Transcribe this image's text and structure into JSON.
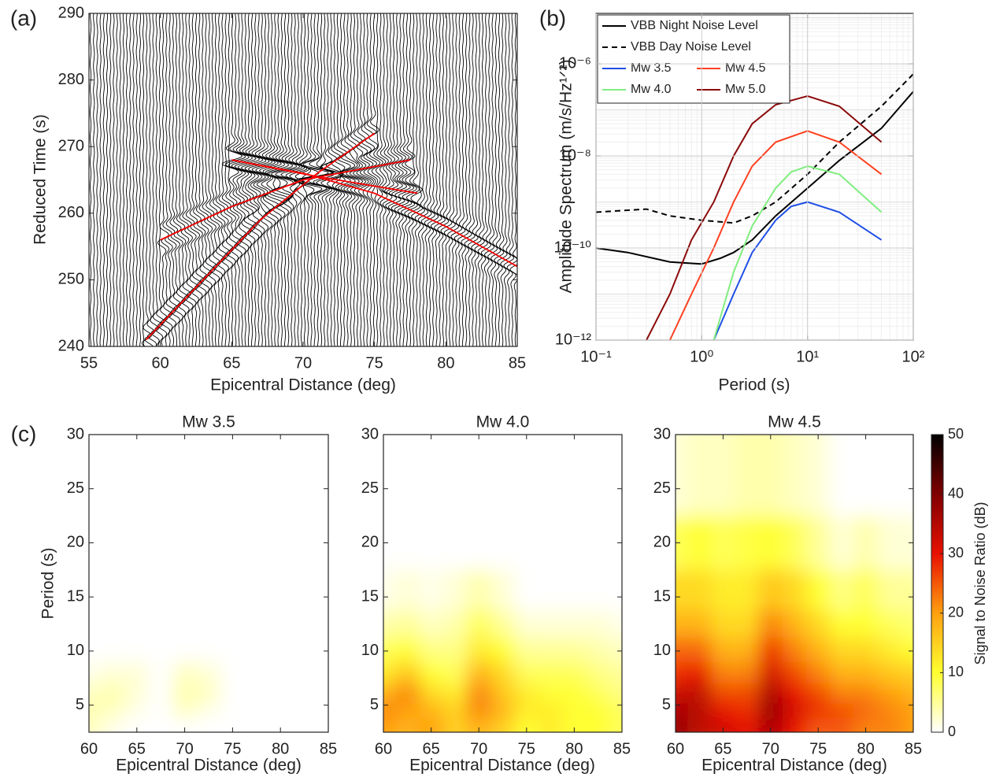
{
  "chart_data": [
    {
      "type": "record_section",
      "panel_label": "(a)",
      "xlabel": "Epicentral Distance (deg)",
      "ylabel": "Reduced Time (s)",
      "xlim": [
        55,
        85
      ],
      "ylim": [
        240,
        290
      ],
      "xticks": [
        55,
        60,
        65,
        70,
        75,
        80,
        85
      ],
      "yticks": [
        240,
        250,
        260,
        270,
        280,
        290
      ],
      "color": "#ff0000",
      "series": [
        {
          "x": [
            59,
            63,
            67,
            71,
            75
          ],
          "values": [
            241,
            250,
            259,
            266,
            272
          ]
        },
        {
          "x": [
            60,
            65,
            70,
            77.5
          ],
          "values": [
            256,
            261,
            265,
            268
          ]
        },
        {
          "x": [
            65,
            70,
            75,
            80,
            85
          ],
          "values": [
            268,
            266,
            263,
            258,
            252
          ]
        },
        {
          "x": [
            65,
            71,
            78
          ],
          "values": [
            268,
            265.5,
            263
          ]
        }
      ]
    },
    {
      "type": "line",
      "panel_label": "(b)",
      "xlabel": "Period (s)",
      "ylabel": "Amplitude Spectrum (m/s/Hz¹ᐟ²)",
      "log_x": true,
      "log_y": true,
      "grid": true,
      "legend": "upper left",
      "xlim": [
        0.1,
        100
      ],
      "ylim": [
        1e-12,
        1.25e-05
      ],
      "xticks": [
        {
          "value": 0.1,
          "label": "10⁻¹"
        },
        {
          "value": 1,
          "label": "10⁰"
        },
        {
          "value": 10,
          "label": "10¹"
        },
        {
          "value": 100,
          "label": "10²"
        }
      ],
      "yticks": [
        {
          "value": 1e-12,
          "label": "10⁻¹²"
        },
        {
          "value": 1e-10,
          "label": "10⁻¹⁰"
        },
        {
          "value": 1e-08,
          "label": "10⁻⁸"
        },
        {
          "value": 1e-06,
          "label": "10⁻⁶"
        }
      ],
      "series": [
        {
          "name": "VBB Night Noise Level",
          "color": "#000000",
          "dash": false,
          "x": [
            0.1,
            0.2,
            0.5,
            1,
            1.5,
            2,
            3,
            5,
            10,
            20,
            50,
            100
          ],
          "values": [
            1e-10,
            8e-11,
            5e-11,
            4.5e-11,
            6e-11,
            8e-11,
            1.5e-10,
            5e-10,
            2e-09,
            8e-09,
            4e-08,
            2.5e-07
          ]
        },
        {
          "name": "VBB Day Noise Level",
          "color": "#000000",
          "dash": true,
          "x": [
            0.1,
            0.3,
            0.5,
            1,
            2,
            3,
            5,
            10,
            20,
            50,
            100
          ],
          "values": [
            6e-10,
            7e-10,
            5e-10,
            4e-10,
            3.5e-10,
            5e-10,
            1e-09,
            4e-09,
            2e-08,
            1.2e-07,
            6e-07
          ]
        },
        {
          "name": "Mw 3.5",
          "color": "#1f4fe6",
          "dash": false,
          "x": [
            1.3,
            2,
            3,
            5,
            7,
            10,
            20,
            50
          ],
          "values": [
            1e-12,
            1e-11,
            8e-11,
            4e-10,
            8e-10,
            1e-09,
            6e-10,
            1.5e-10
          ]
        },
        {
          "name": "Mw 4.5",
          "color": "#ff4020",
          "dash": false,
          "x": [
            0.5,
            0.8,
            1.3,
            2,
            3,
            5,
            10,
            20,
            50
          ],
          "values": [
            1e-12,
            1e-11,
            1e-10,
            1e-09,
            6e-09,
            2e-08,
            3.5e-08,
            2e-08,
            4e-09
          ]
        },
        {
          "name": "Mw 4.0",
          "color": "#80ee80",
          "dash": false,
          "x": [
            1.3,
            2,
            3,
            5,
            7,
            10,
            20,
            50
          ],
          "values": [
            1e-12,
            3e-11,
            3e-10,
            2e-09,
            4.5e-09,
            6e-09,
            4e-09,
            6e-10
          ]
        },
        {
          "name": "Mw 5.0",
          "color": "#8b0a0a",
          "dash": false,
          "x": [
            0.3,
            0.5,
            0.8,
            1.3,
            2,
            3,
            5,
            10,
            20,
            50
          ],
          "values": [
            1e-12,
            1e-11,
            1.5e-10,
            1e-09,
            1e-08,
            5e-08,
            1.3e-07,
            2e-07,
            1.2e-07,
            2e-08
          ]
        }
      ]
    },
    {
      "type": "heatmap",
      "panel_label": "(c)",
      "title": "Mw 3.5",
      "xlabel": "Epicentral Distance (deg)",
      "ylabel": "Period (s)",
      "xlim": [
        60,
        85
      ],
      "ylim": [
        2.5,
        30
      ],
      "xticks": [
        60,
        65,
        70,
        75,
        80,
        85
      ],
      "yticks": [
        5,
        10,
        15,
        20,
        25,
        30
      ],
      "x": [
        60,
        62.5,
        65,
        67.5,
        70,
        72.5,
        75,
        77.5,
        80,
        82.5,
        85
      ],
      "y": [
        3,
        4.5,
        6,
        8,
        10,
        12.5,
        15,
        20,
        25
      ],
      "z": [
        [
          3,
          1,
          0,
          0,
          0,
          0,
          0,
          0,
          0,
          0,
          0
        ],
        [
          4,
          3,
          1,
          0,
          3,
          1,
          0,
          0,
          0,
          0,
          0
        ],
        [
          3,
          4,
          2,
          0,
          4,
          3,
          0,
          0,
          0,
          0,
          0
        ],
        [
          1,
          2,
          2,
          0,
          3,
          2,
          0,
          0,
          0,
          0,
          0
        ],
        [
          0,
          0,
          0,
          0,
          0,
          0,
          0,
          0,
          0,
          0,
          0
        ],
        [
          0,
          0,
          0,
          0,
          0,
          0,
          0,
          0,
          0,
          0,
          0
        ],
        [
          0,
          0,
          0,
          0,
          0,
          0,
          0,
          0,
          0,
          0,
          0
        ],
        [
          0,
          0,
          0,
          0,
          0,
          0,
          0,
          0,
          0,
          0,
          0
        ],
        [
          0,
          0,
          0,
          0,
          0,
          0,
          0,
          0,
          0,
          0,
          0
        ]
      ]
    },
    {
      "type": "heatmap",
      "title": "Mw 4.0",
      "xlabel": "Epicentral Distance (deg)",
      "xlim": [
        60,
        85
      ],
      "ylim": [
        2.5,
        30
      ],
      "xticks": [
        60,
        65,
        70,
        75,
        80,
        85
      ],
      "yticks": [
        5,
        10,
        15,
        20,
        25,
        30
      ],
      "x": [
        60,
        62.5,
        65,
        67.5,
        70,
        72.5,
        75,
        77.5,
        80,
        82.5,
        85
      ],
      "y": [
        3,
        4.5,
        6,
        8,
        10,
        12.5,
        15,
        20,
        25
      ],
      "z": [
        [
          20,
          18,
          20,
          15,
          18,
          15,
          10,
          12,
          10,
          10,
          8
        ],
        [
          22,
          20,
          18,
          15,
          22,
          18,
          12,
          12,
          10,
          10,
          8
        ],
        [
          18,
          22,
          14,
          12,
          22,
          16,
          12,
          10,
          10,
          8,
          6
        ],
        [
          12,
          16,
          10,
          8,
          18,
          14,
          8,
          8,
          8,
          6,
          5
        ],
        [
          8,
          10,
          6,
          6,
          12,
          10,
          5,
          5,
          5,
          4,
          3
        ],
        [
          4,
          5,
          3,
          4,
          8,
          5,
          2,
          2,
          2,
          2,
          1
        ],
        [
          1,
          2,
          1,
          2,
          4,
          2,
          0,
          0,
          0,
          0,
          0
        ],
        [
          0,
          0,
          0,
          0,
          0,
          0,
          0,
          0,
          0,
          0,
          0
        ],
        [
          0,
          0,
          0,
          0,
          0,
          0,
          0,
          0,
          0,
          0,
          0
        ]
      ]
    },
    {
      "type": "heatmap",
      "title": "Mw 4.5",
      "xlabel": "Epicentral Distance (deg)",
      "xlim": [
        60,
        85
      ],
      "ylim": [
        2.5,
        30
      ],
      "xticks": [
        60,
        65,
        70,
        75,
        80,
        85
      ],
      "yticks": [
        5,
        10,
        15,
        20,
        25,
        30
      ],
      "x": [
        60,
        62.5,
        65,
        67.5,
        70,
        72.5,
        75,
        77.5,
        80,
        82.5,
        85
      ],
      "y": [
        3,
        4.5,
        6,
        8,
        10,
        12.5,
        15,
        20,
        25
      ],
      "z": [
        [
          38,
          34,
          32,
          30,
          36,
          30,
          25,
          25,
          22,
          22,
          20
        ],
        [
          36,
          35,
          30,
          28,
          38,
          32,
          28,
          26,
          24,
          22,
          20
        ],
        [
          33,
          34,
          26,
          26,
          36,
          30,
          26,
          22,
          22,
          20,
          18
        ],
        [
          28,
          30,
          22,
          22,
          32,
          26,
          22,
          18,
          18,
          16,
          15
        ],
        [
          24,
          24,
          18,
          18,
          28,
          22,
          18,
          14,
          14,
          12,
          10
        ],
        [
          18,
          18,
          14,
          14,
          22,
          18,
          14,
          10,
          10,
          8,
          7
        ],
        [
          14,
          14,
          12,
          12,
          16,
          14,
          10,
          6,
          8,
          5,
          5
        ],
        [
          8,
          10,
          8,
          9,
          10,
          8,
          5,
          2,
          4,
          2,
          2
        ],
        [
          2,
          3,
          3,
          4,
          4,
          3,
          2,
          0,
          0,
          0,
          0
        ]
      ],
      "colorbar": {
        "label": "Signal to Noise Ratio (dB)",
        "lim": [
          0,
          50
        ],
        "ticks": [
          0,
          10,
          20,
          30,
          40,
          50
        ],
        "colors": [
          "#ffffff",
          "#ffff30",
          "#ffa010",
          "#e81000",
          "#800000",
          "#000000"
        ]
      }
    }
  ]
}
